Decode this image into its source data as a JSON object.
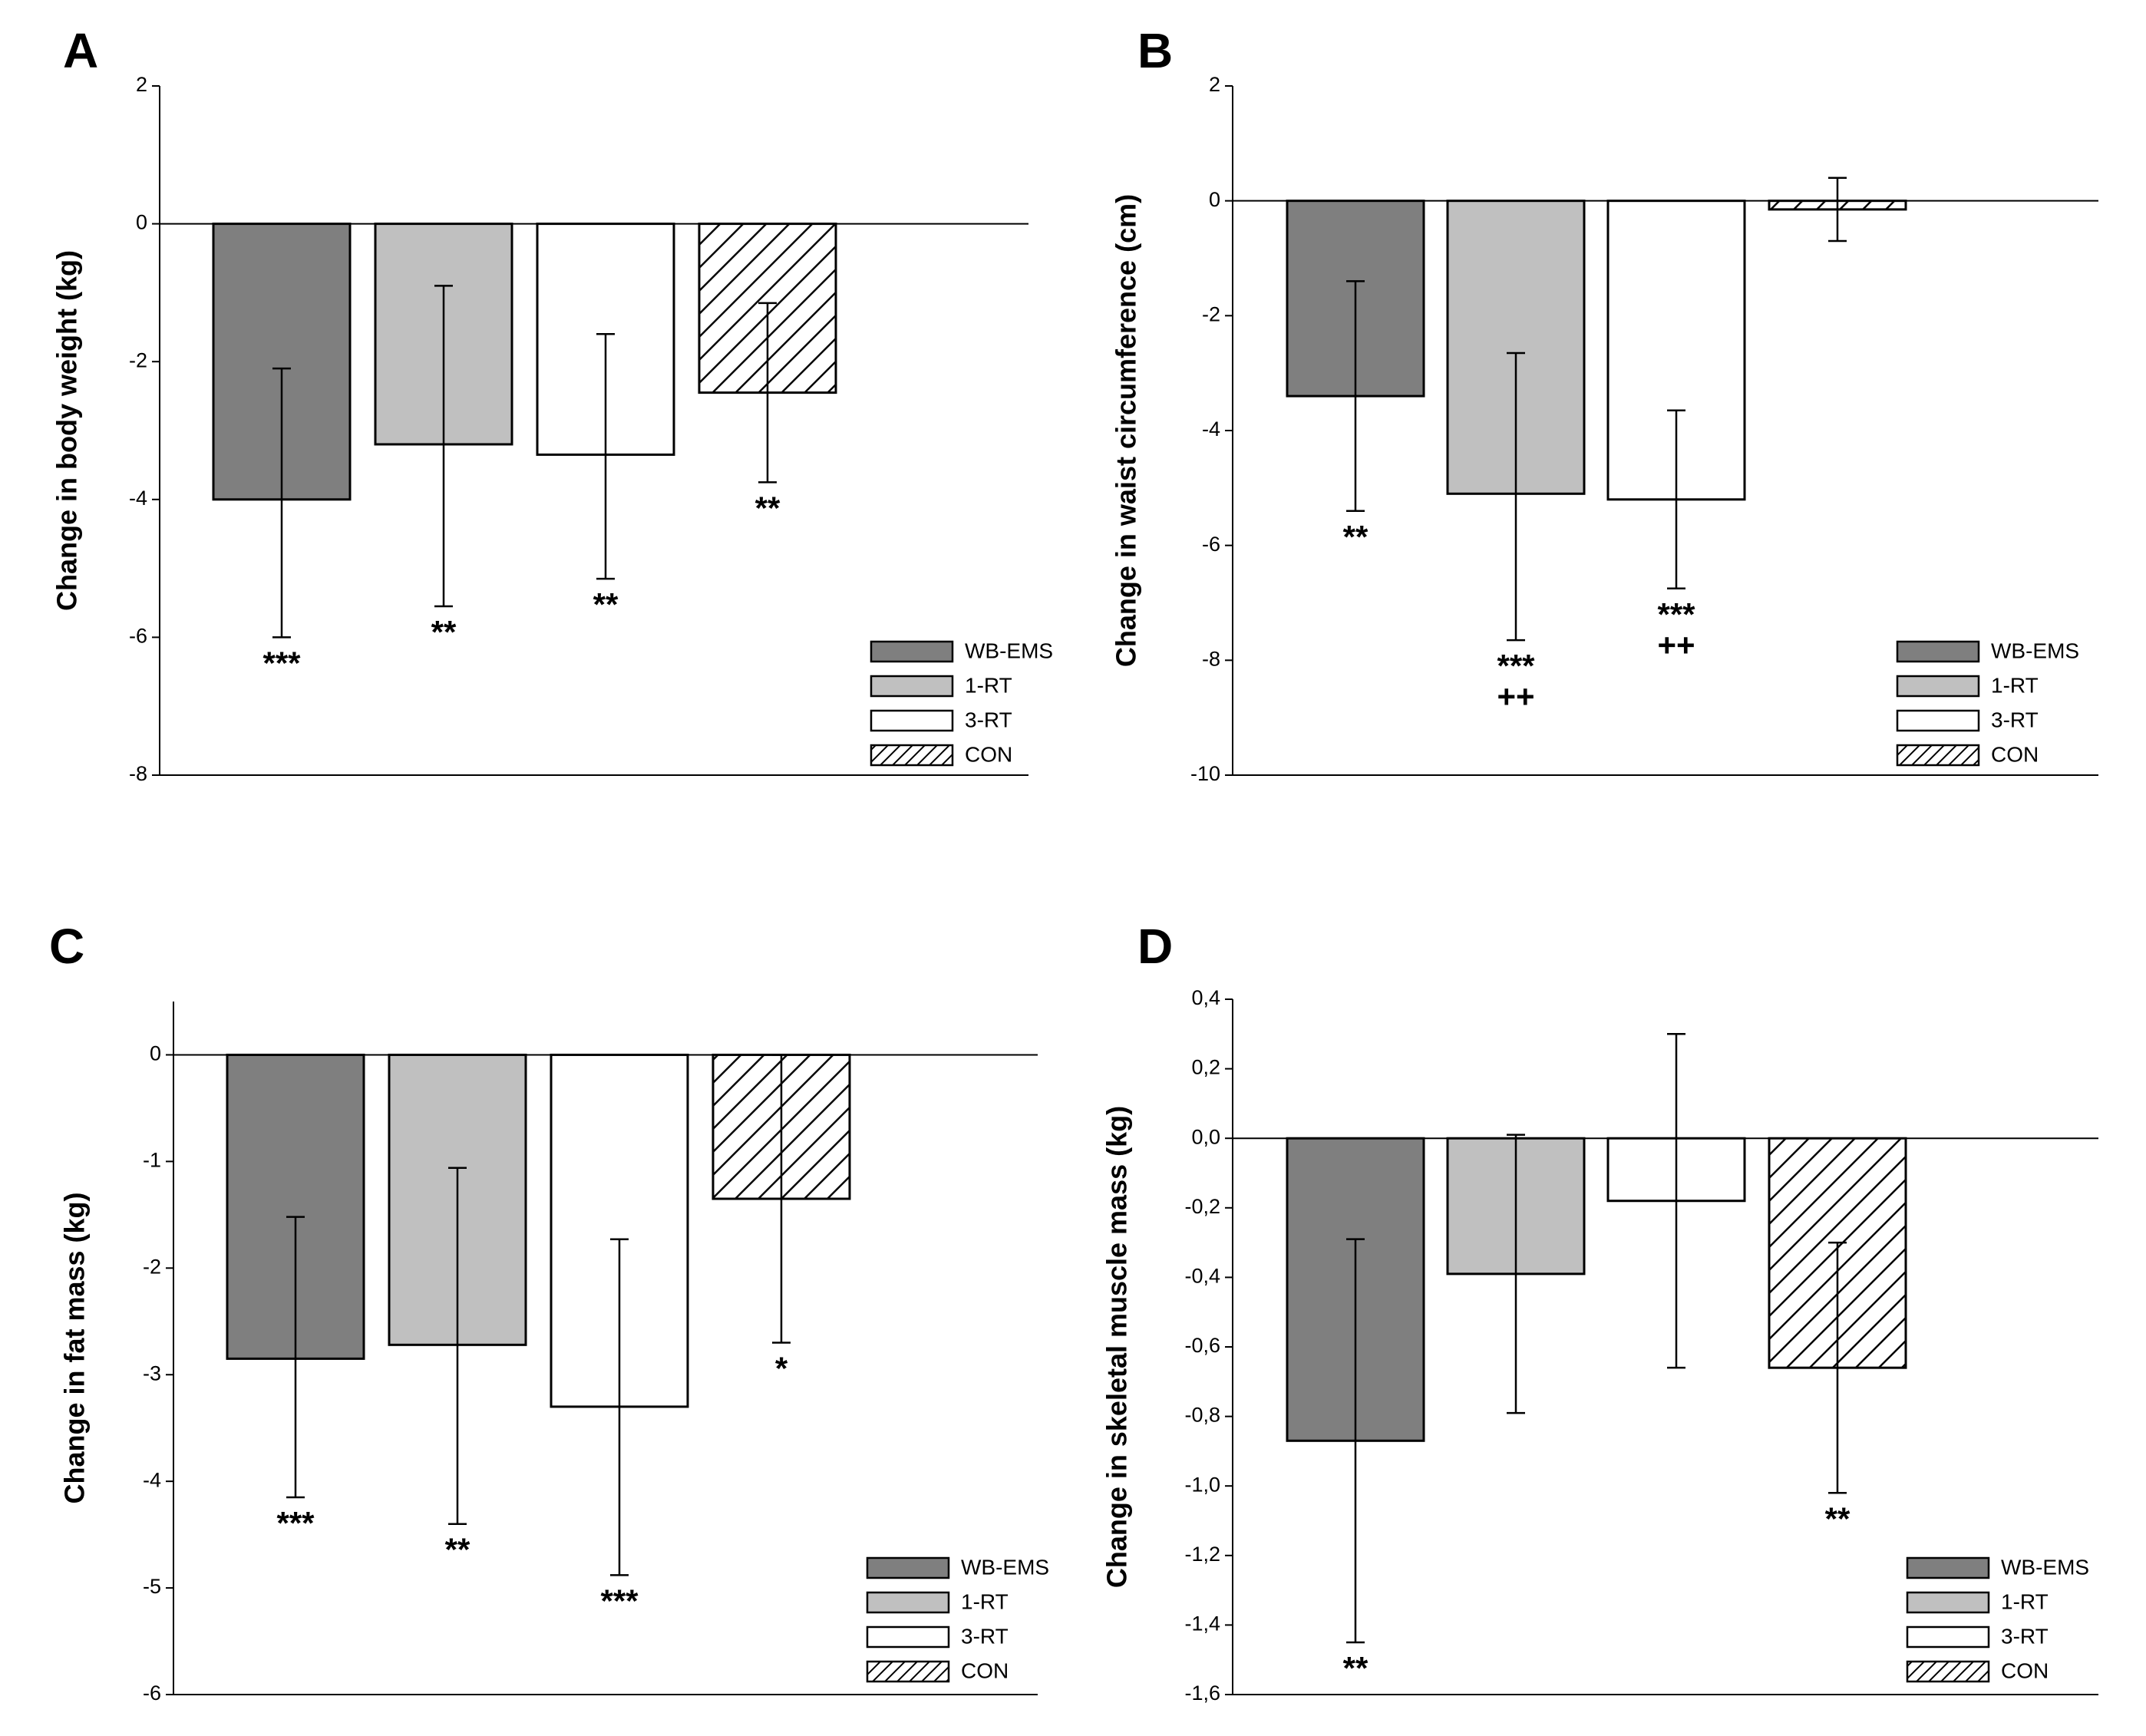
{
  "figure": {
    "colors": {
      "WB-EMS": "#7f7f7f",
      "1-RT": "#c0c0c0",
      "3-RT": "#ffffff",
      "CON": "#ffffff",
      "axis": "#000000",
      "zero_line": "#000000"
    }
  },
  "chart_data": [
    {
      "panel": "A",
      "type": "bar",
      "ylabel": "Change in body weight (kg)",
      "ylim": [
        -8,
        2
      ],
      "yticks": [
        2,
        0,
        -2,
        -4,
        -6,
        -8
      ],
      "ytick_labels": [
        "2",
        "0",
        "-2",
        "-4",
        "-6",
        "-8"
      ],
      "categories": [
        "WB-EMS",
        "1-RT",
        "3-RT",
        "CON"
      ],
      "series": [
        {
          "name": "Change",
          "values": [
            -4.0,
            -3.2,
            -3.35,
            -2.45
          ],
          "error_ends": [
            -6.0,
            -5.55,
            -5.15,
            -3.75
          ],
          "error_other": [
            -2.1,
            -0.9,
            -1.6,
            -1.15
          ]
        }
      ],
      "significance": [
        "***",
        "**",
        "**",
        "**"
      ],
      "significance2": [
        "",
        "",
        "",
        ""
      ],
      "legend": [
        "WB-EMS",
        "1-RT",
        "3-RT",
        "CON"
      ],
      "legend_position": "bottom-right"
    },
    {
      "panel": "B",
      "type": "bar",
      "ylabel": "Change in waist circumference (cm)",
      "ylim": [
        -10,
        2
      ],
      "yticks": [
        2,
        0,
        -2,
        -4,
        -6,
        -8,
        -10
      ],
      "ytick_labels": [
        "2",
        "0",
        "-2",
        "-4",
        "-6",
        "-8",
        "-10"
      ],
      "categories": [
        "WB-EMS",
        "1-RT",
        "3-RT",
        "CON"
      ],
      "series": [
        {
          "name": "Change",
          "values": [
            -3.4,
            -5.1,
            -5.2,
            -0.15
          ],
          "error_ends": [
            -5.4,
            -7.65,
            -6.75,
            -0.7
          ],
          "error_other": [
            -1.4,
            -2.65,
            -3.65,
            0.4
          ]
        }
      ],
      "significance": [
        "**",
        "***",
        "***",
        ""
      ],
      "significance2": [
        "",
        "++",
        "++",
        ""
      ],
      "legend": [
        "WB-EMS",
        "1-RT",
        "3-RT",
        "CON"
      ],
      "legend_position": "bottom-right"
    },
    {
      "panel": "C",
      "type": "bar",
      "ylabel": "Change in fat mass (kg)",
      "ylim": [
        -6,
        0.5
      ],
      "yticks": [
        0,
        -1,
        -2,
        -3,
        -4,
        -5,
        -6
      ],
      "ytick_labels": [
        "0",
        "-1",
        "-2",
        "-3",
        "-4",
        "-5",
        "-6"
      ],
      "categories": [
        "WB-EMS",
        "1-RT",
        "3-RT",
        "CON"
      ],
      "series": [
        {
          "name": "Change",
          "values": [
            -2.85,
            -2.72,
            -3.3,
            -1.35
          ],
          "error_ends": [
            -4.15,
            -4.4,
            -4.88,
            -2.7
          ],
          "error_other": [
            -1.52,
            -1.06,
            -1.73,
            0
          ]
        }
      ],
      "significance": [
        "***",
        "**",
        "***",
        "*"
      ],
      "significance2": [
        "",
        "",
        "",
        ""
      ],
      "legend": [
        "WB-EMS",
        "1-RT",
        "3-RT",
        "CON"
      ],
      "legend_position": "bottom-right"
    },
    {
      "panel": "D",
      "type": "bar",
      "ylabel": "Change in skeletal muscle mass (kg)",
      "ylim": [
        -1.6,
        0.4
      ],
      "yticks": [
        0.4,
        0.2,
        0.0,
        -0.2,
        -0.4,
        -0.6,
        -0.8,
        -1.0,
        -1.2,
        -1.4,
        -1.6
      ],
      "ytick_labels": [
        "0,4",
        "0,2",
        "0,0",
        "-0,2",
        "-0,4",
        "-0,6",
        "-0,8",
        "-1,0",
        "-1,2",
        "-1,4",
        "-1,6"
      ],
      "categories": [
        "WB-EMS",
        "1-RT",
        "3-RT",
        "CON"
      ],
      "series": [
        {
          "name": "Change",
          "values": [
            -0.87,
            -0.39,
            -0.18,
            -0.66
          ],
          "error_ends": [
            -1.45,
            -0.79,
            -0.66,
            -1.02
          ],
          "error_other": [
            -0.29,
            0.01,
            0.3,
            -0.3
          ]
        }
      ],
      "significance": [
        "**",
        "",
        "",
        "**"
      ],
      "significance2": [
        "",
        "",
        "",
        ""
      ],
      "legend": [
        "WB-EMS",
        "1-RT",
        "3-RT",
        "CON"
      ],
      "legend_position": "bottom-right"
    }
  ]
}
